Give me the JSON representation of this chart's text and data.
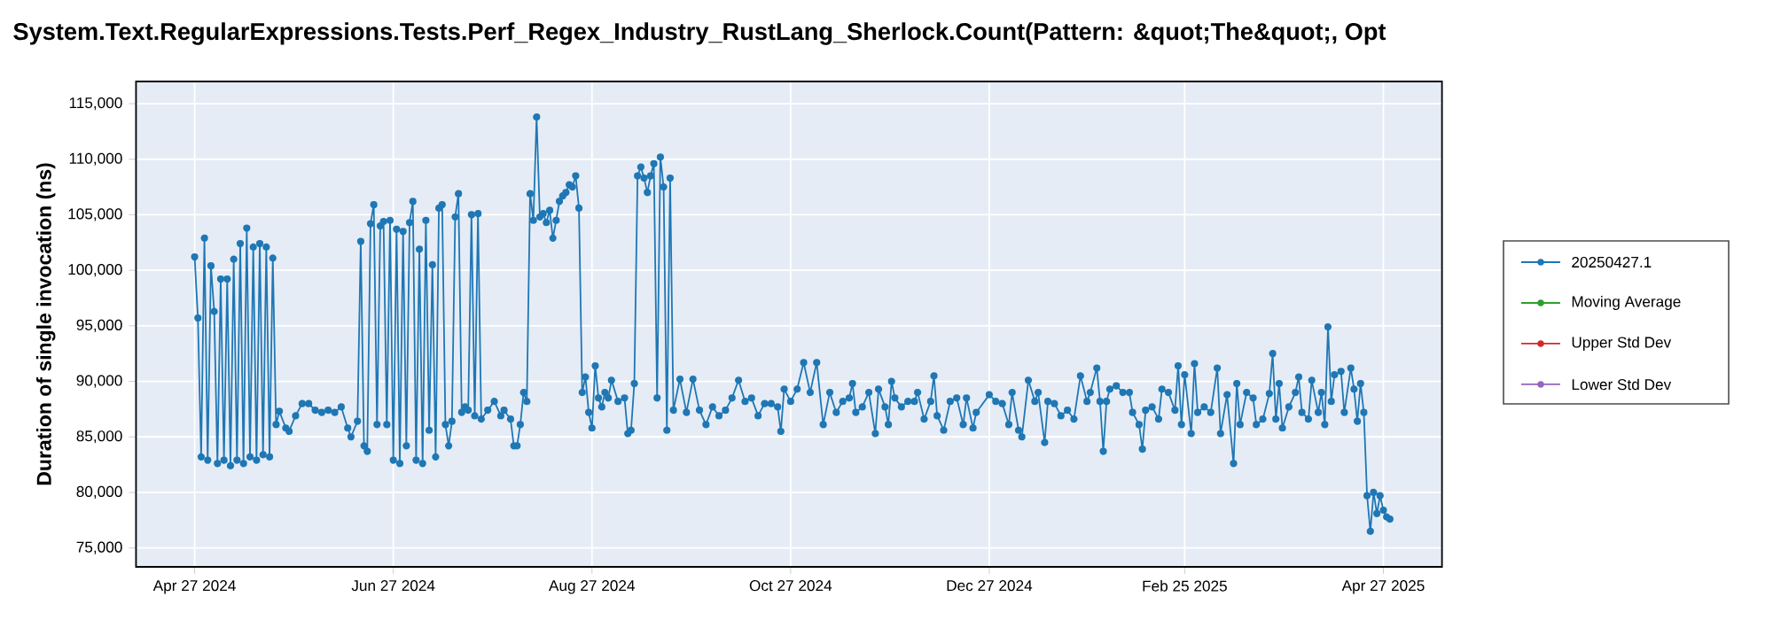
{
  "chart_data": {
    "type": "line",
    "title": "System.Text.RegularExpressions.Tests.Perf_Regex_Industry_RustLang_Sherlock.Count(Pattern: &quot;The&quot;, Opt",
    "ylabel": "Duration of single invocation (ns)",
    "x": [
      "2024-04-27",
      "2024-04-28",
      "2024-04-29",
      "2024-04-30",
      "2024-05-01",
      "2024-05-02",
      "2024-05-03",
      "2024-05-04",
      "2024-05-05",
      "2024-05-06",
      "2024-05-07",
      "2024-05-08",
      "2024-05-09",
      "2024-05-10",
      "2024-05-11",
      "2024-05-12",
      "2024-05-13",
      "2024-05-14",
      "2024-05-15",
      "2024-05-16",
      "2024-05-17",
      "2024-05-18",
      "2024-05-19",
      "2024-05-20",
      "2024-05-21",
      "2024-05-22",
      "2024-05-23",
      "2024-05-25",
      "2024-05-26",
      "2024-05-28",
      "2024-05-30",
      "2024-06-01",
      "2024-06-03",
      "2024-06-05",
      "2024-06-07",
      "2024-06-09",
      "2024-06-11",
      "2024-06-13",
      "2024-06-14",
      "2024-06-16",
      "2024-06-17",
      "2024-06-18",
      "2024-06-19",
      "2024-06-20",
      "2024-06-21",
      "2024-06-22",
      "2024-06-23",
      "2024-06-24",
      "2024-06-25",
      "2024-06-26",
      "2024-06-27",
      "2024-06-28",
      "2024-06-29",
      "2024-06-30",
      "2024-07-01",
      "2024-07-02",
      "2024-07-03",
      "2024-07-04",
      "2024-07-05",
      "2024-07-06",
      "2024-07-07",
      "2024-07-08",
      "2024-07-09",
      "2024-07-10",
      "2024-07-11",
      "2024-07-12",
      "2024-07-13",
      "2024-07-14",
      "2024-07-15",
      "2024-07-16",
      "2024-07-17",
      "2024-07-18",
      "2024-07-19",
      "2024-07-20",
      "2024-07-21",
      "2024-07-22",
      "2024-07-23",
      "2024-07-24",
      "2024-07-26",
      "2024-07-28",
      "2024-07-30",
      "2024-07-31",
      "2024-08-02",
      "2024-08-03",
      "2024-08-04",
      "2024-08-05",
      "2024-08-06",
      "2024-08-07",
      "2024-08-08",
      "2024-08-09",
      "2024-08-10",
      "2024-08-11",
      "2024-08-12",
      "2024-08-13",
      "2024-08-14",
      "2024-08-15",
      "2024-08-16",
      "2024-08-17",
      "2024-08-18",
      "2024-08-19",
      "2024-08-20",
      "2024-08-21",
      "2024-08-22",
      "2024-08-23",
      "2024-08-24",
      "2024-08-25",
      "2024-08-26",
      "2024-08-27",
      "2024-08-28",
      "2024-08-29",
      "2024-08-30",
      "2024-08-31",
      "2024-09-01",
      "2024-09-02",
      "2024-09-04",
      "2024-09-06",
      "2024-09-07",
      "2024-09-08",
      "2024-09-09",
      "2024-09-10",
      "2024-09-11",
      "2024-09-12",
      "2024-09-13",
      "2024-09-14",
      "2024-09-15",
      "2024-09-16",
      "2024-09-17",
      "2024-09-18",
      "2024-09-19",
      "2024-09-20",
      "2024-09-21",
      "2024-09-23",
      "2024-09-25",
      "2024-09-27",
      "2024-09-29",
      "2024-10-01",
      "2024-10-03",
      "2024-10-05",
      "2024-10-07",
      "2024-10-09",
      "2024-10-11",
      "2024-10-13",
      "2024-10-15",
      "2024-10-17",
      "2024-10-19",
      "2024-10-21",
      "2024-10-23",
      "2024-10-24",
      "2024-10-25",
      "2024-10-27",
      "2024-10-29",
      "2024-10-31",
      "2024-11-02",
      "2024-11-04",
      "2024-11-06",
      "2024-11-08",
      "2024-11-10",
      "2024-11-12",
      "2024-11-14",
      "2024-11-15",
      "2024-11-16",
      "2024-11-18",
      "2024-11-20",
      "2024-11-22",
      "2024-11-23",
      "2024-11-25",
      "2024-11-26",
      "2024-11-27",
      "2024-11-28",
      "2024-11-30",
      "2024-12-02",
      "2024-12-04",
      "2024-12-05",
      "2024-12-07",
      "2024-12-09",
      "2024-12-10",
      "2024-12-11",
      "2024-12-13",
      "2024-12-15",
      "2024-12-17",
      "2024-12-19",
      "2024-12-20",
      "2024-12-22",
      "2024-12-23",
      "2024-12-27",
      "2024-12-29",
      "2024-12-31",
      "2025-01-02",
      "2025-01-03",
      "2025-01-05",
      "2025-01-06",
      "2025-01-08",
      "2025-01-10",
      "2025-01-11",
      "2025-01-13",
      "2025-01-14",
      "2025-01-16",
      "2025-01-18",
      "2025-01-20",
      "2025-01-22",
      "2025-01-24",
      "2025-01-26",
      "2025-01-27",
      "2025-01-29",
      "2025-01-30",
      "2025-01-31",
      "2025-02-01",
      "2025-02-02",
      "2025-02-04",
      "2025-02-06",
      "2025-02-08",
      "2025-02-09",
      "2025-02-11",
      "2025-02-12",
      "2025-02-13",
      "2025-02-15",
      "2025-02-17",
      "2025-02-18",
      "2025-02-20",
      "2025-02-22",
      "2025-02-23",
      "2025-02-24",
      "2025-02-25",
      "2025-02-27",
      "2025-02-28",
      "2025-03-01",
      "2025-03-03",
      "2025-03-05",
      "2025-03-07",
      "2025-03-08",
      "2025-03-10",
      "2025-03-12",
      "2025-03-13",
      "2025-03-14",
      "2025-03-16",
      "2025-03-18",
      "2025-03-19",
      "2025-03-21",
      "2025-03-23",
      "2025-03-24",
      "2025-03-25",
      "2025-03-26",
      "2025-03-27",
      "2025-03-29",
      "2025-03-31",
      "2025-04-01",
      "2025-04-02",
      "2025-04-04",
      "2025-04-05",
      "2025-04-07",
      "2025-04-08",
      "2025-04-09",
      "2025-04-10",
      "2025-04-11",
      "2025-04-12",
      "2025-04-14",
      "2025-04-15",
      "2025-04-17",
      "2025-04-18",
      "2025-04-19",
      "2025-04-20",
      "2025-04-21",
      "2025-04-22",
      "2025-04-23",
      "2025-04-24",
      "2025-04-25",
      "2025-04-26",
      "2025-04-27",
      "2025-04-28",
      "2025-04-29"
    ],
    "series": [
      {
        "name": "20250427.1",
        "color": "#1f77b4",
        "values": [
          101200,
          95700,
          83200,
          102900,
          82900,
          100400,
          96300,
          82600,
          99200,
          82900,
          99200,
          82400,
          101000,
          82900,
          102400,
          82600,
          103800,
          83200,
          102100,
          82900,
          102400,
          83400,
          102100,
          83200,
          101100,
          86100,
          87300,
          85800,
          85500,
          86900,
          88000,
          88000,
          87400,
          87200,
          87400,
          87200,
          87700,
          85800,
          85000,
          86400,
          102600,
          84200,
          83700,
          104200,
          105900,
          86100,
          104000,
          104400,
          86100,
          104500,
          82900,
          103700,
          82600,
          103500,
          84200,
          104300,
          106200,
          82900,
          101900,
          82600,
          104500,
          85600,
          100500,
          83200,
          105600,
          105900,
          86100,
          84200,
          86400,
          104800,
          106900,
          87200,
          87700,
          87400,
          105000,
          86900,
          105100,
          86600,
          87400,
          88200,
          86900,
          87400,
          86600,
          84200,
          84200,
          86100,
          89000,
          88200,
          106900,
          104500,
          113800,
          104800,
          105100,
          104300,
          105400,
          102900,
          104500,
          106200,
          106700,
          107000,
          107700,
          107500,
          108500,
          105600,
          89000,
          90400,
          87200,
          85800,
          91400,
          88500,
          87700,
          89000,
          88500,
          90100,
          88200,
          88500,
          85300,
          85600,
          89800,
          108500,
          109300,
          108300,
          107000,
          108500,
          109600,
          88500,
          110200,
          107500,
          85600,
          108300,
          87400,
          90200,
          87200,
          90200,
          87400,
          86100,
          87700,
          86900,
          87400,
          88500,
          90100,
          88200,
          88500,
          86900,
          88000,
          88000,
          87700,
          85500,
          89300,
          88200,
          89300,
          91700,
          89000,
          91700,
          86100,
          89000,
          87200,
          88200,
          88500,
          89800,
          87200,
          87700,
          89000,
          85300,
          89300,
          87700,
          86100,
          90000,
          88500,
          87700,
          88200,
          88200,
          89000,
          86600,
          88200,
          90500,
          86900,
          85600,
          88200,
          88500,
          86100,
          88500,
          85800,
          87200,
          88800,
          88200,
          88000,
          86100,
          89000,
          85600,
          85000,
          90100,
          88200,
          89000,
          84500,
          88200,
          88000,
          86900,
          87400,
          86600,
          90500,
          88200,
          89000,
          91200,
          88200,
          83700,
          88200,
          89300,
          89600,
          89000,
          89000,
          87200,
          86100,
          83900,
          87400,
          87700,
          86600,
          89300,
          89000,
          87400,
          91400,
          86100,
          90600,
          85300,
          91600,
          87200,
          87700,
          87200,
          91200,
          85300,
          88800,
          82600,
          89800,
          86100,
          89000,
          88500,
          86100,
          86600,
          88900,
          92500,
          86600,
          89800,
          85800,
          87700,
          89000,
          90400,
          87200,
          86600,
          90100,
          87200,
          89000,
          86100,
          94900,
          88200,
          90600,
          90900,
          87200,
          91200,
          89300,
          86400,
          89800,
          87200,
          79700,
          76500,
          80000,
          78100,
          79700,
          78400,
          77800,
          77600
        ]
      },
      {
        "name": "Moving Average",
        "color": "#2ca02c",
        "values": [
          null,
          null,
          null,
          null,
          null,
          null,
          null,
          null,
          null,
          null,
          null,
          null,
          null,
          null,
          null,
          null,
          null,
          null,
          null,
          null,
          null,
          null,
          null,
          null,
          null,
          null,
          null,
          null,
          null,
          null,
          null,
          null,
          null,
          null,
          null,
          null,
          null,
          null,
          null,
          null,
          null,
          null,
          null,
          null,
          null,
          null,
          null,
          null,
          null,
          null,
          null,
          null,
          null,
          null,
          null,
          null,
          null,
          null,
          null,
          null,
          null,
          null,
          null,
          null,
          null,
          null,
          null,
          null,
          null,
          null,
          null,
          null,
          null,
          null,
          null,
          null,
          null,
          null,
          null,
          null,
          null,
          null,
          null,
          null,
          null,
          null,
          null,
          null,
          null,
          null,
          null,
          null,
          null,
          null,
          null,
          null,
          null,
          null,
          null,
          null,
          null,
          null,
          null,
          null,
          null,
          null,
          null,
          null,
          null,
          null,
          null,
          null,
          null,
          null,
          null,
          null,
          null,
          null,
          null,
          null,
          null,
          null,
          null,
          null,
          null,
          null,
          null,
          null,
          null,
          null,
          null,
          null,
          null,
          null,
          null,
          null,
          null,
          null,
          null,
          null,
          null,
          null,
          null,
          null,
          null,
          null,
          null,
          null,
          null,
          null,
          null,
          null,
          null,
          null,
          null,
          null,
          null,
          null,
          null,
          null,
          null,
          null,
          null,
          null,
          null,
          null,
          null,
          null,
          null,
          null,
          null,
          null,
          null,
          null,
          null,
          null,
          null,
          null,
          null,
          null,
          null,
          null,
          null,
          null,
          null,
          null,
          null,
          null,
          null,
          null,
          null,
          null,
          null,
          null,
          null,
          null,
          null,
          null,
          null,
          null,
          null,
          null,
          null,
          null,
          null,
          null,
          null,
          null,
          null,
          null,
          null,
          null,
          null,
          null,
          null,
          null,
          null,
          null,
          null,
          null,
          null,
          null,
          null,
          null,
          null,
          null,
          null,
          null,
          null,
          null,
          null,
          null,
          null,
          null,
          null,
          null,
          null,
          null,
          null,
          null,
          null,
          null,
          null,
          null,
          null,
          null,
          null,
          null,
          null,
          null,
          null,
          null,
          null,
          null,
          null,
          null,
          null,
          null,
          null,
          null,
          null,
          null,
          null,
          null,
          null,
          null,
          null,
          null,
          null,
          null
        ]
      },
      {
        "name": "Upper Std Dev",
        "color": "#d62728",
        "values": [
          null,
          null,
          null,
          null,
          null,
          null,
          null,
          null,
          null,
          null,
          null,
          null,
          null,
          null,
          null,
          null,
          null,
          null,
          null,
          null,
          null,
          null,
          null,
          null,
          null,
          null,
          null,
          null,
          null,
          null,
          null,
          null,
          null,
          null,
          null,
          null,
          null,
          null,
          null,
          null,
          null,
          null,
          null,
          null,
          null,
          null,
          null,
          null,
          null,
          null,
          null,
          null,
          null,
          null,
          null,
          null,
          null,
          null,
          null,
          null,
          null,
          null,
          null,
          null,
          null,
          null,
          null,
          null,
          null,
          null,
          null,
          null,
          null,
          null,
          null,
          null,
          null,
          null,
          null,
          null,
          null,
          null,
          null,
          null,
          null,
          null,
          null,
          null,
          null,
          null,
          null,
          null,
          null,
          null,
          null,
          null,
          null,
          null,
          null,
          null,
          null,
          null,
          null,
          null,
          null,
          null,
          null,
          null,
          null,
          null,
          null,
          null,
          null,
          null,
          null,
          null,
          null,
          null,
          null,
          null,
          null,
          null,
          null,
          null,
          null,
          null,
          null,
          null,
          null,
          null,
          null,
          null,
          null,
          null,
          null,
          null,
          null,
          null,
          null,
          null,
          null,
          null,
          null,
          null,
          null,
          null,
          null,
          null,
          null,
          null,
          null,
          null,
          null,
          null,
          null,
          null,
          null,
          null,
          null,
          null,
          null,
          null,
          null,
          null,
          null,
          null,
          null,
          null,
          null,
          null,
          null,
          null,
          null,
          null,
          null,
          null,
          null,
          null,
          null,
          null,
          null,
          null,
          null,
          null,
          null,
          null,
          null,
          null,
          null,
          null,
          null,
          null,
          null,
          null,
          null,
          null,
          null,
          null,
          null,
          null,
          null,
          null,
          null,
          null,
          null,
          null,
          null,
          null,
          null,
          null,
          null,
          null,
          null,
          null,
          null,
          null,
          null,
          null,
          null,
          null,
          null,
          null,
          null,
          null,
          null,
          null,
          null,
          null,
          null,
          null,
          null,
          null,
          null,
          null,
          null,
          null,
          null,
          null,
          null,
          null,
          null,
          null,
          null,
          null,
          null,
          null,
          null,
          null,
          null,
          null,
          null,
          null,
          null,
          null,
          null,
          null,
          null,
          null,
          null,
          null,
          null,
          null,
          null,
          null,
          null,
          null,
          null,
          null,
          null,
          null
        ]
      },
      {
        "name": "Lower Std Dev",
        "color": "#9467bd",
        "values": [
          null,
          null,
          null,
          null,
          null,
          null,
          null,
          null,
          null,
          null,
          null,
          null,
          null,
          null,
          null,
          null,
          null,
          null,
          null,
          null,
          null,
          null,
          null,
          null,
          null,
          null,
          null,
          null,
          null,
          null,
          null,
          null,
          null,
          null,
          null,
          null,
          null,
          null,
          null,
          null,
          null,
          null,
          null,
          null,
          null,
          null,
          null,
          null,
          null,
          null,
          null,
          null,
          null,
          null,
          null,
          null,
          null,
          null,
          null,
          null,
          null,
          null,
          null,
          null,
          null,
          null,
          null,
          null,
          null,
          null,
          null,
          null,
          null,
          null,
          null,
          null,
          null,
          null,
          null,
          null,
          null,
          null,
          null,
          null,
          null,
          null,
          null,
          null,
          null,
          null,
          null,
          null,
          null,
          null,
          null,
          null,
          null,
          null,
          null,
          null,
          null,
          null,
          null,
          null,
          null,
          null,
          null,
          null,
          null,
          null,
          null,
          null,
          null,
          null,
          null,
          null,
          null,
          null,
          null,
          null,
          null,
          null,
          null,
          null,
          null,
          null,
          null,
          null,
          null,
          null,
          null,
          null,
          null,
          null,
          null,
          null,
          null,
          null,
          null,
          null,
          null,
          null,
          null,
          null,
          null,
          null,
          null,
          null,
          null,
          null,
          null,
          null,
          null,
          null,
          null,
          null,
          null,
          null,
          null,
          null,
          null,
          null,
          null,
          null,
          null,
          null,
          null,
          null,
          null,
          null,
          null,
          null,
          null,
          null,
          null,
          null,
          null,
          null,
          null,
          null,
          null,
          null,
          null,
          null,
          null,
          null,
          null,
          null,
          null,
          null,
          null,
          null,
          null,
          null,
          null,
          null,
          null,
          null,
          null,
          null,
          null,
          null,
          null,
          null,
          null,
          null,
          null,
          null,
          null,
          null,
          null,
          null,
          null,
          null,
          null,
          null,
          null,
          null,
          null,
          null,
          null,
          null,
          null,
          null,
          null,
          null,
          null,
          null,
          null,
          null,
          null,
          null,
          null,
          null,
          null,
          null,
          null,
          null,
          null,
          null,
          null,
          null,
          null,
          null,
          null,
          null,
          null,
          null,
          null,
          null,
          null,
          null,
          null,
          null,
          null,
          null,
          null,
          null,
          null,
          null,
          null,
          null,
          null,
          null,
          null,
          null,
          null,
          null,
          null,
          null
        ]
      }
    ],
    "xlim": [
      "2024-04-09",
      "2025-05-15"
    ],
    "xticks": [
      {
        "value": "2024-04-27",
        "label": "Apr 27 2024"
      },
      {
        "value": "2024-06-27",
        "label": "Jun 27 2024"
      },
      {
        "value": "2024-08-27",
        "label": "Aug 27 2024"
      },
      {
        "value": "2024-10-27",
        "label": "Oct 27 2024"
      },
      {
        "value": "2024-12-27",
        "label": "Dec 27 2024"
      },
      {
        "value": "2025-02-25",
        "label": "Feb 25 2025"
      },
      {
        "value": "2025-04-27",
        "label": "Apr 27 2025"
      }
    ],
    "ylim": [
      73300,
      117000
    ],
    "yticks": [
      {
        "value": 75000,
        "label": "75,000"
      },
      {
        "value": 80000,
        "label": "80,000"
      },
      {
        "value": 85000,
        "label": "85,000"
      },
      {
        "value": 90000,
        "label": "90,000"
      },
      {
        "value": 95000,
        "label": "95,000"
      },
      {
        "value": 100000,
        "label": "100,000"
      },
      {
        "value": 105000,
        "label": "105,000"
      },
      {
        "value": 110000,
        "label": "110,000"
      },
      {
        "value": 115000,
        "label": "115,000"
      }
    ],
    "grid": true,
    "legend": "right",
    "marker": "circle",
    "line_style": "solid"
  }
}
